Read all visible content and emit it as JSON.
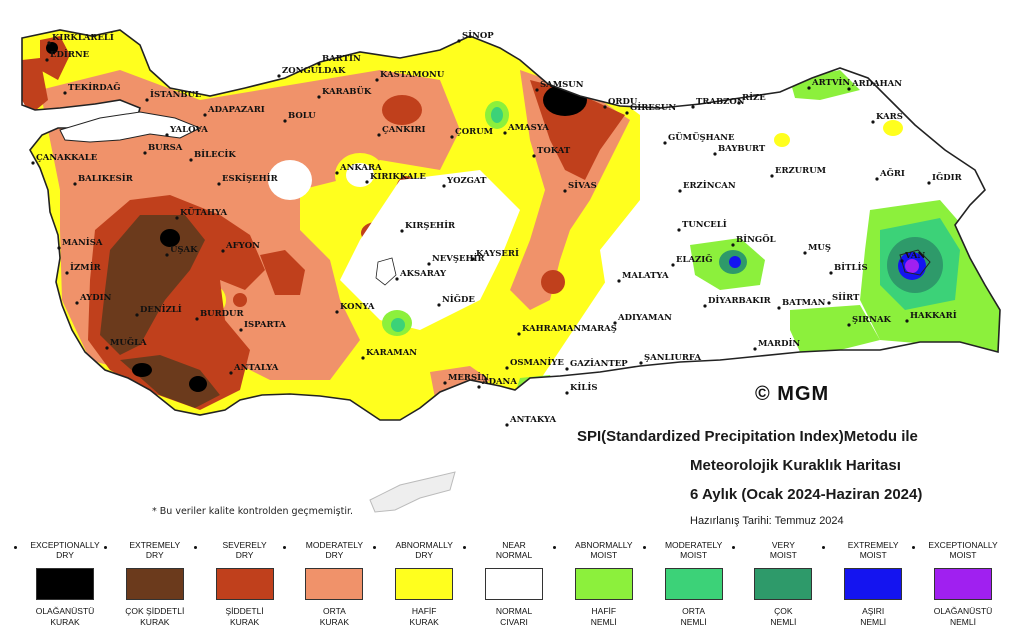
{
  "map": {
    "title_line1": "SPI(Standardized Precipitation Index)Metodu ile",
    "title_line2": "Meteorolojik Kuraklık Haritası",
    "title_line3": "6 Aylık (Ocak 2024-Haziran 2024)",
    "prepared": "Hazırlanış Tarihi: Temmuz 2024",
    "note": "* Bu veriler kalite kontrolden geçmemiştir.",
    "brand": "© MGM",
    "cities": [
      {
        "name": "KIRKLARELİ"
      },
      {
        "name": "EDİRNE"
      },
      {
        "name": "TEKİRDAĞ"
      },
      {
        "name": "İSTANBUL"
      },
      {
        "name": "ÇANAKKALE"
      },
      {
        "name": "YALOVA"
      },
      {
        "name": "BURSA"
      },
      {
        "name": "BİLECİK"
      },
      {
        "name": "BALIKESİR"
      },
      {
        "name": "ADAPAZARI"
      },
      {
        "name": "BOLU"
      },
      {
        "name": "BARTIN"
      },
      {
        "name": "ZONGULDAK"
      },
      {
        "name": "KARABÜK"
      },
      {
        "name": "KASTAMONU"
      },
      {
        "name": "SİNOP"
      },
      {
        "name": "SAMSUN"
      },
      {
        "name": "ORDU"
      },
      {
        "name": "GİRESUN"
      },
      {
        "name": "TRABZON"
      },
      {
        "name": "RİZE"
      },
      {
        "name": "ARTVİN"
      },
      {
        "name": "ARDAHAN"
      },
      {
        "name": "KARS"
      },
      {
        "name": "ÇANKIRI"
      },
      {
        "name": "ÇORUM"
      },
      {
        "name": "AMASYA"
      },
      {
        "name": "TOKAT"
      },
      {
        "name": "SİVAS"
      },
      {
        "name": "GÜMÜŞHANE"
      },
      {
        "name": "BAYBURT"
      },
      {
        "name": "ERZURUM"
      },
      {
        "name": "AĞRI"
      },
      {
        "name": "IĞDIR"
      },
      {
        "name": "ERZİNCAN"
      },
      {
        "name": "ESKİŞEHİR"
      },
      {
        "name": "ANKARA"
      },
      {
        "name": "KIRIKKALE"
      },
      {
        "name": "YOZGAT"
      },
      {
        "name": "KÜTAHYA"
      },
      {
        "name": "MANİSA"
      },
      {
        "name": "İZMİR"
      },
      {
        "name": "UŞAK"
      },
      {
        "name": "AFYON"
      },
      {
        "name": "AYDIN"
      },
      {
        "name": "DENİZLİ"
      },
      {
        "name": "MUĞLA"
      },
      {
        "name": "BURDUR"
      },
      {
        "name": "ISPARTA"
      },
      {
        "name": "ANTALYA"
      },
      {
        "name": "KONYA"
      },
      {
        "name": "KARAMAN"
      },
      {
        "name": "MERSİN"
      },
      {
        "name": "ADANA"
      },
      {
        "name": "OSMANİYE"
      },
      {
        "name": "GAZİANTEP"
      },
      {
        "name": "KİLİS"
      },
      {
        "name": "ANTAKYA"
      },
      {
        "name": "KIRŞEHİR"
      },
      {
        "name": "NEVŞEHİR"
      },
      {
        "name": "KAYSERİ"
      },
      {
        "name": "AKSARAY"
      },
      {
        "name": "NİĞDE"
      },
      {
        "name": "KAHRAMANMARAŞ"
      },
      {
        "name": "MALATYA"
      },
      {
        "name": "ADIYAMAN"
      },
      {
        "name": "ŞANLIURFA"
      },
      {
        "name": "TUNCELİ"
      },
      {
        "name": "ELAZIĞ"
      },
      {
        "name": "BİNGÖL"
      },
      {
        "name": "MUŞ"
      },
      {
        "name": "BİTLİS"
      },
      {
        "name": "VAN"
      },
      {
        "name": "DİYARBAKIR"
      },
      {
        "name": "BATMAN"
      },
      {
        "name": "SİİRT"
      },
      {
        "name": "MARDİN"
      },
      {
        "name": "ŞIRNAK"
      },
      {
        "name": "HAKKARİ"
      }
    ]
  },
  "legend": [
    {
      "en": "EXCEPTIONALLY\nDRY",
      "tr": "OLAĞANÜSTÜ\nKURAK",
      "color": "#000000"
    },
    {
      "en": "EXTREMELY\nDRY",
      "tr": "ÇOK ŞİDDETLİ\nKURAK",
      "color": "#6b3a1c"
    },
    {
      "en": "SEVERELY\nDRY",
      "tr": "ŞİDDETLİ\nKURAK",
      "color": "#c0401c"
    },
    {
      "en": "MODERATELY\nDRY",
      "tr": "ORTA\nKURAK",
      "color": "#f0926a"
    },
    {
      "en": "ABNORMALLY\nDRY",
      "tr": "HAFİF\nKURAK",
      "color": "#ffff1e"
    },
    {
      "en": "NEAR\nNORMAL",
      "tr": "NORMAL\nCIVARI",
      "color": "#ffffff"
    },
    {
      "en": "ABNORMALLY\nMOIST",
      "tr": "HAFİF\nNEMLİ",
      "color": "#8cf03c"
    },
    {
      "en": "MODERATELY\nMOIST",
      "tr": "ORTA\nNEMLİ",
      "color": "#3cd278"
    },
    {
      "en": "VERY\nMOIST",
      "tr": "ÇOK\nNEMLİ",
      "color": "#2e9a6a"
    },
    {
      "en": "EXTREMELY\nMOIST",
      "tr": "AŞIRI\nNEMLİ",
      "color": "#1414f0"
    },
    {
      "en": "EXCEPTIONALLY\nMOIST",
      "tr": "OLAĞANÜSTÜ\nNEMLİ",
      "color": "#a020f0"
    }
  ]
}
